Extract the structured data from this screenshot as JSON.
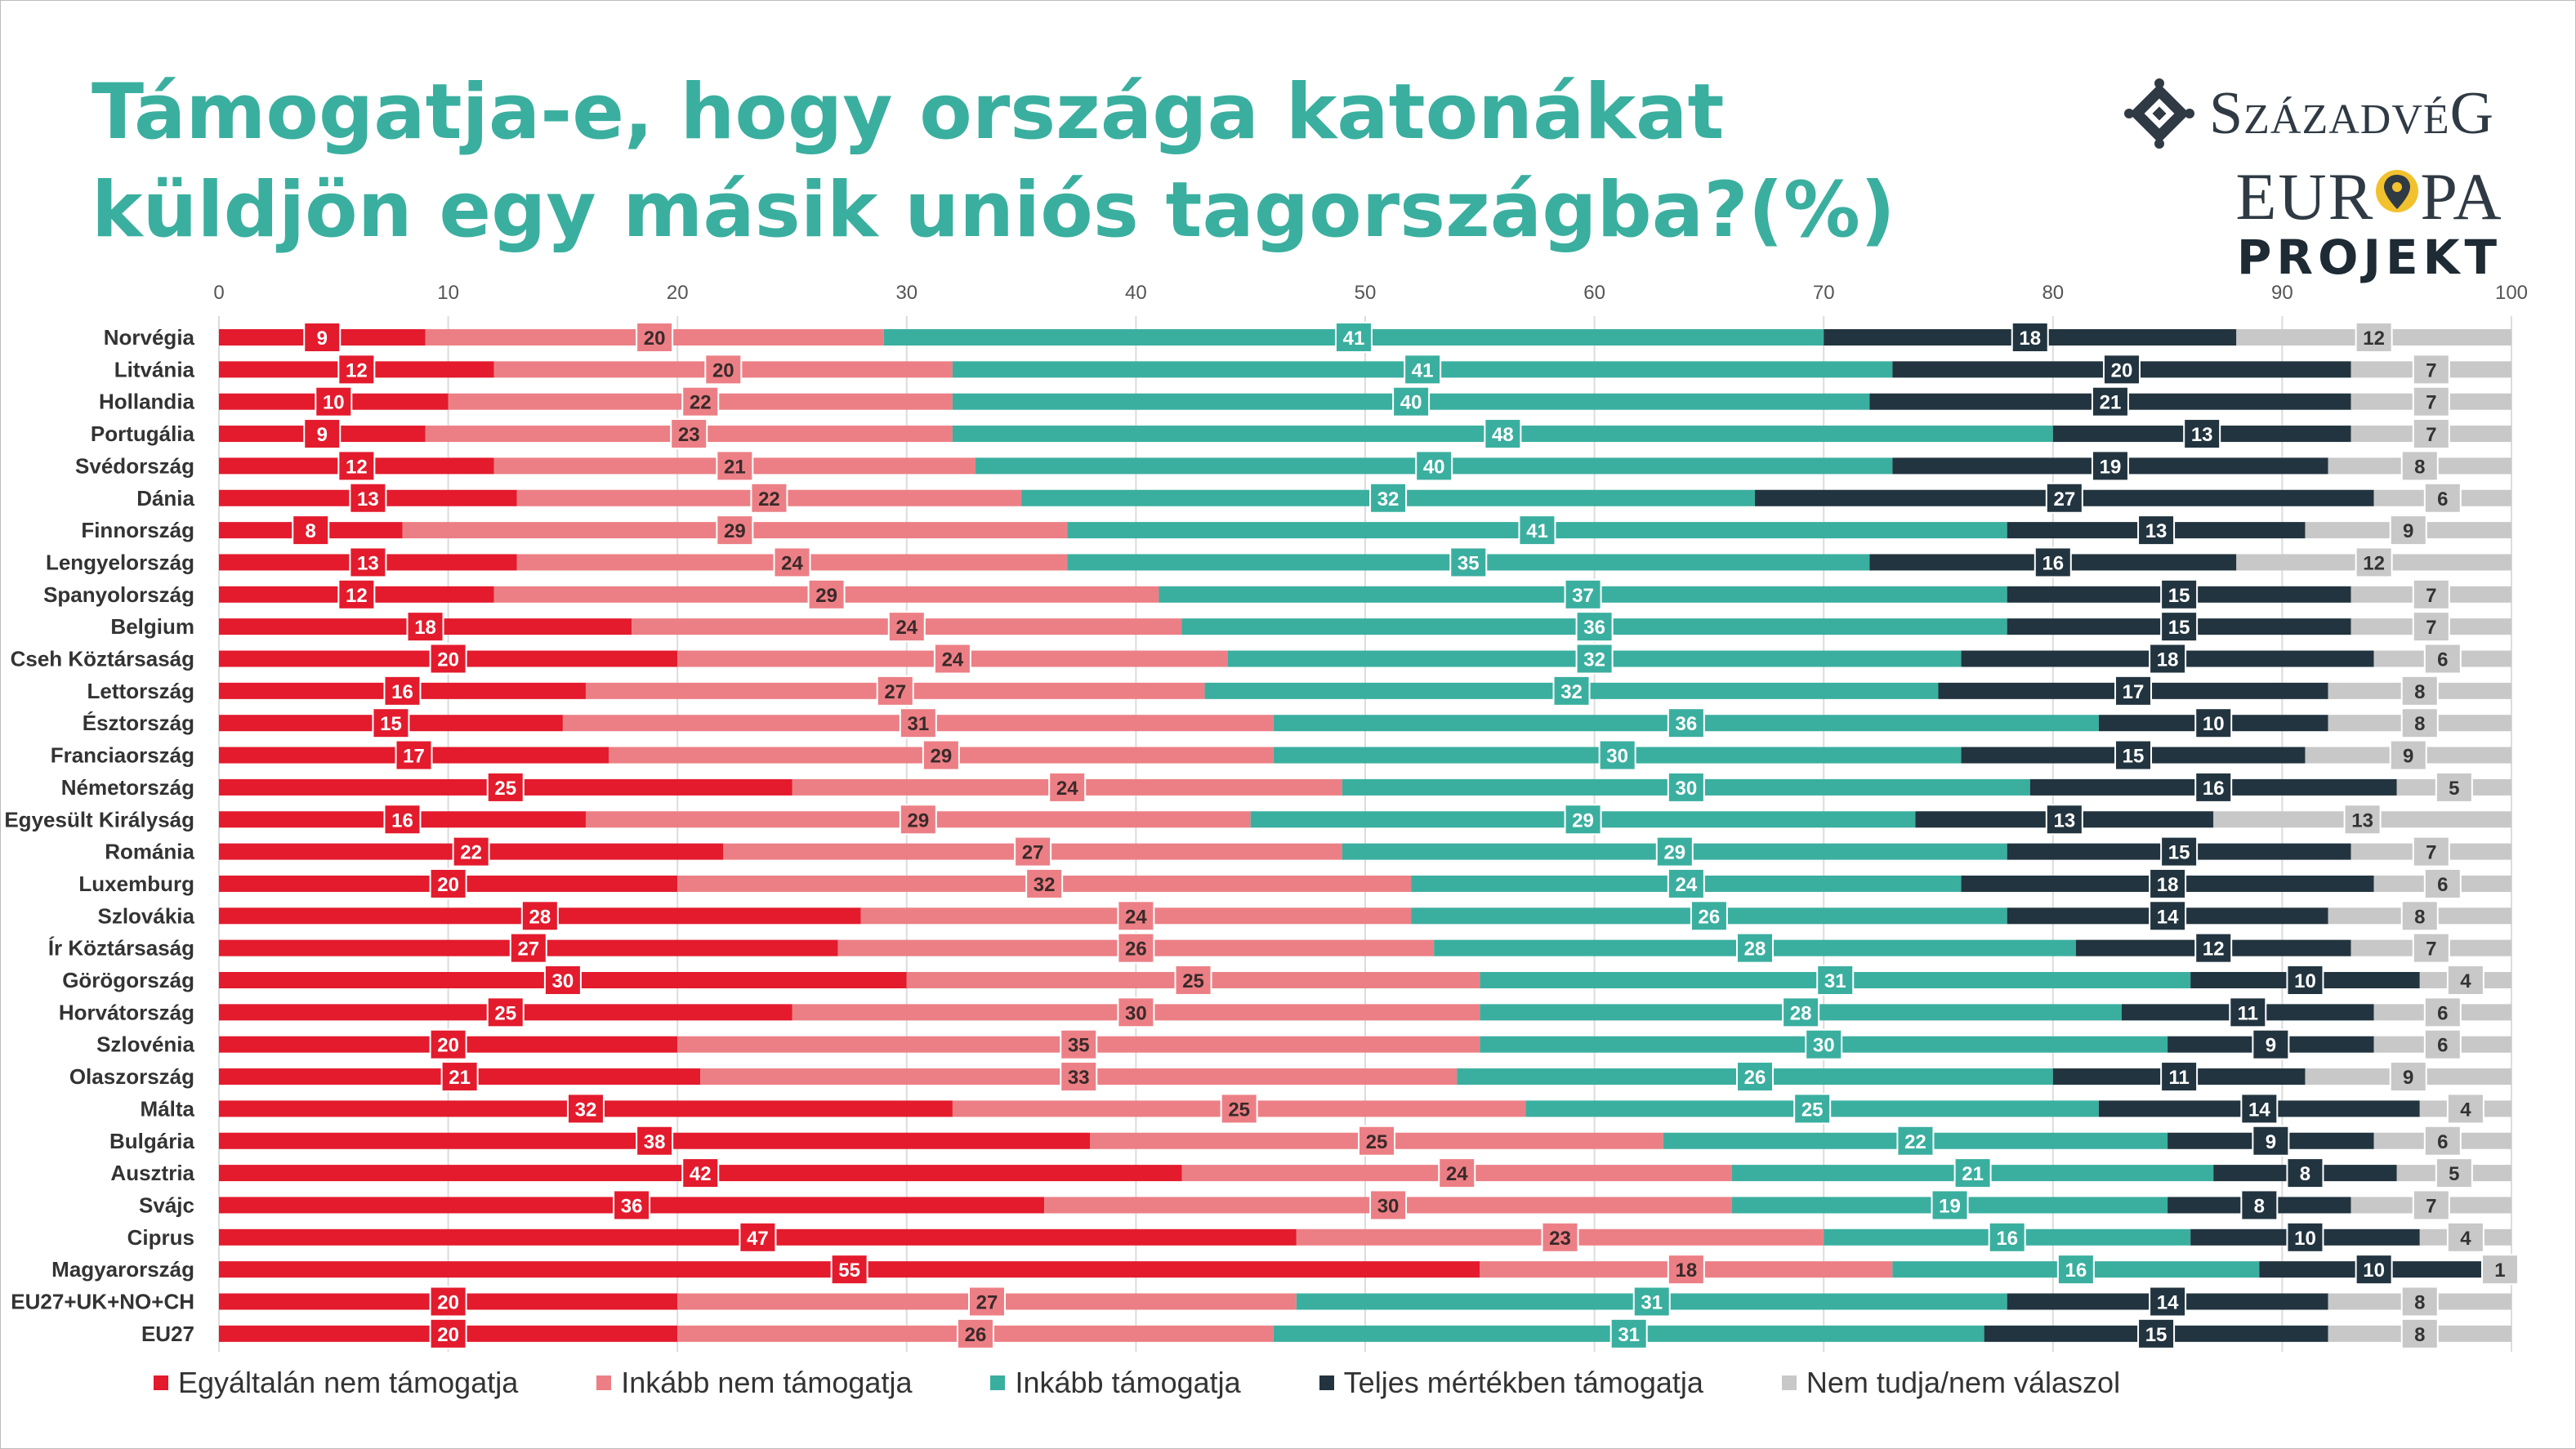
{
  "title": "Támogatja-e, hogy országa katonákat küldjön egy másik uniós tagországba?(%)",
  "logo": {
    "brand1": "SzázadvéG",
    "brand2_line1": "EUR◉PA",
    "brand2_line2": "PROJEKT",
    "diamond_icon": "diamond-knot-icon",
    "pin_icon": "map-pin-icon"
  },
  "colors": [
    "#e31b2d",
    "#ec7f85",
    "#3aaf9f",
    "#22343f",
    "#c8c8c8"
  ],
  "chart_data": {
    "type": "bar",
    "orientation": "horizontal",
    "stacked": true,
    "xlim": [
      0,
      100
    ],
    "x_ticks": [
      0,
      10,
      20,
      30,
      40,
      50,
      60,
      70,
      80,
      90,
      100
    ],
    "categories": [
      "Norvégia",
      "Litvánia",
      "Hollandia",
      "Portugália",
      "Svédország",
      "Dánia",
      "Finnország",
      "Lengyelország",
      "Spanyolország",
      "Belgium",
      "Cseh Köztársaság",
      "Lettország",
      "Észtország",
      "Franciaország",
      "Németország",
      "Egyesült Királyság",
      "Románia",
      "Luxemburg",
      "Szlovákia",
      "Ír Köztársaság",
      "Görögország",
      "Horvátország",
      "Szlovénia",
      "Olaszország",
      "Málta",
      "Bulgária",
      "Ausztria",
      "Svájc",
      "Ciprus",
      "Magyarország",
      "EU27+UK+NO+CH",
      "EU27"
    ],
    "series": [
      {
        "name": "Egyáltalán nem támogatja",
        "color": "#e31b2d",
        "values": [
          9,
          12,
          10,
          9,
          12,
          13,
          8,
          13,
          12,
          18,
          20,
          16,
          15,
          17,
          25,
          16,
          22,
          20,
          28,
          27,
          30,
          25,
          20,
          21,
          32,
          38,
          42,
          36,
          47,
          55,
          20,
          20
        ]
      },
      {
        "name": "Inkább nem támogatja",
        "color": "#ec7f85",
        "values": [
          20,
          20,
          22,
          23,
          21,
          22,
          29,
          24,
          29,
          24,
          24,
          27,
          31,
          29,
          24,
          29,
          27,
          32,
          24,
          26,
          25,
          30,
          35,
          33,
          25,
          25,
          24,
          30,
          23,
          18,
          27,
          26
        ]
      },
      {
        "name": "Inkább támogatja",
        "color": "#3aaf9f",
        "values": [
          41,
          41,
          40,
          48,
          40,
          32,
          41,
          35,
          37,
          36,
          32,
          32,
          36,
          30,
          30,
          29,
          29,
          24,
          26,
          28,
          31,
          28,
          30,
          26,
          25,
          22,
          21,
          19,
          16,
          16,
          31,
          31
        ]
      },
      {
        "name": "Teljes mértékben támogatja",
        "color": "#22343f",
        "values": [
          18,
          20,
          21,
          13,
          19,
          27,
          13,
          16,
          15,
          15,
          18,
          17,
          10,
          15,
          16,
          13,
          15,
          18,
          14,
          12,
          10,
          11,
          9,
          11,
          14,
          9,
          8,
          8,
          10,
          10,
          14,
          15
        ]
      },
      {
        "name": "Nem tudja/nem válaszol",
        "color": "#c8c8c8",
        "values": [
          12,
          7,
          7,
          7,
          8,
          6,
          9,
          12,
          7,
          7,
          6,
          8,
          8,
          9,
          5,
          13,
          7,
          6,
          8,
          7,
          4,
          6,
          6,
          9,
          4,
          6,
          5,
          7,
          4,
          1,
          8,
          8
        ]
      }
    ]
  }
}
